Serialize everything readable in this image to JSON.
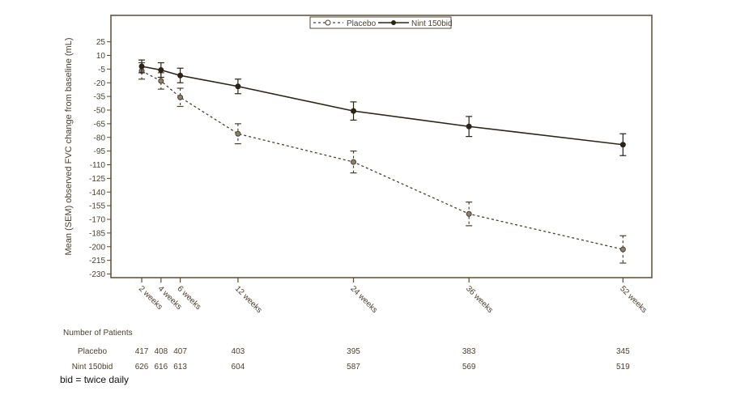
{
  "chart_data": {
    "type": "line",
    "title": "",
    "xlabel": "",
    "ylabel": "Mean (SEM) observed FVC change from baseline (mL)",
    "ylim": [
      -234,
      54
    ],
    "xlim": [
      -1.2,
      55
    ],
    "y_ticks": [
      25,
      10,
      -5,
      -20,
      -35,
      -50,
      -65,
      -80,
      -95,
      -110,
      -125,
      -140,
      -155,
      -170,
      -185,
      -200,
      -215,
      -230
    ],
    "x": [
      2,
      4,
      6,
      12,
      24,
      36,
      52
    ],
    "x_tick_labels": [
      "2 weeks",
      "4 weeks",
      "6 weeks",
      "12 weeks",
      "24 weeks",
      "36 weeks",
      "52 weeks"
    ],
    "legend_placement": "top-center",
    "grid": false,
    "series": [
      {
        "name": "Placebo",
        "style": "dashed",
        "marker": "open-circle",
        "color": "#4a3f2e",
        "values": [
          -7,
          -18,
          -36,
          -76,
          -107,
          -164,
          -203
        ],
        "sem": [
          9,
          9,
          10,
          11,
          12,
          13,
          15
        ]
      },
      {
        "name": "Nint 150bid",
        "style": "solid",
        "marker": "filled-circle",
        "color": "#2a2418",
        "values": [
          -2,
          -6,
          -12,
          -24,
          -51,
          -68,
          -88
        ],
        "sem": [
          7,
          8,
          8,
          8,
          10,
          11,
          12
        ]
      }
    ]
  },
  "patients_table": {
    "heading": "Number of Patients",
    "rows": [
      {
        "label": "Placebo",
        "counts": [
          "417",
          "408",
          "407",
          "403",
          "395",
          "383",
          "345"
        ]
      },
      {
        "label": "Nint 150bid",
        "counts": [
          "626",
          "616",
          "613",
          "604",
          "587",
          "569",
          "519"
        ]
      }
    ]
  },
  "footnote": "bid = twice daily",
  "colors": {
    "axis": "#5a4a32",
    "text": "#4a3f2e"
  }
}
